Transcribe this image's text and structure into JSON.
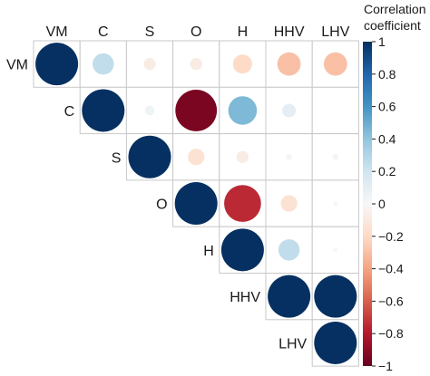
{
  "chart_data": {
    "type": "heatmap",
    "variant": "correlation-matrix-circles",
    "shape": "upper-triangle",
    "variables": [
      "VM",
      "C",
      "S",
      "O",
      "H",
      "HHV",
      "LHV"
    ],
    "correlations": [
      [
        1.0,
        0.25,
        -0.08,
        -0.08,
        -0.2,
        -0.3,
        -0.3
      ],
      [
        null,
        1.0,
        0.05,
        -0.95,
        0.45,
        0.1,
        0.0
      ],
      [
        null,
        null,
        1.0,
        -0.15,
        -0.08,
        0.02,
        0.02
      ],
      [
        null,
        null,
        null,
        1.0,
        -0.75,
        -0.15,
        0.01
      ],
      [
        null,
        null,
        null,
        null,
        1.0,
        0.25,
        0.01
      ],
      [
        null,
        null,
        null,
        null,
        null,
        1.0,
        1.0
      ],
      [
        null,
        null,
        null,
        null,
        null,
        null,
        1.0
      ]
    ],
    "legend": {
      "title_lines": [
        "Correlation",
        "coefficient"
      ],
      "placement": "right",
      "range": [
        -1,
        1
      ],
      "ticks": [
        1,
        0.8,
        0.6,
        0.4,
        0.2,
        0,
        -0.2,
        -0.4,
        -0.6,
        -0.8,
        -1
      ],
      "tick_labels": [
        "1",
        "0.8",
        "0.6",
        "0.4",
        "0.2",
        "0",
        "−0.2",
        "−0.4",
        "−0.6",
        "−0.8",
        "−1"
      ]
    },
    "colors": {
      "positive": "#053061",
      "neutral": "#f7f7f7",
      "negative": "#67001f",
      "grid": "#c8c8c8"
    }
  }
}
